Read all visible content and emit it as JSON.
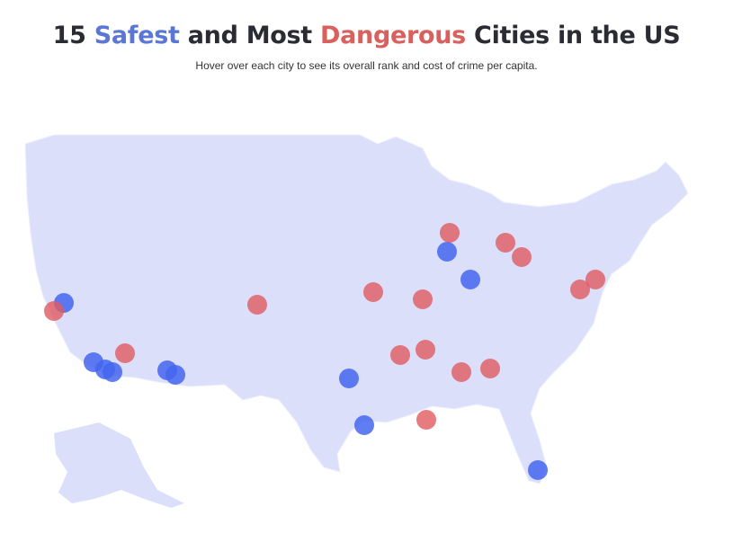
{
  "header": {
    "title": {
      "parts": [
        "15 ",
        "Safest",
        " and Most ",
        "Dangerous",
        " Cities in the US"
      ]
    },
    "subtitle": "Hover over each city to see its overall rank and cost of crime per capita."
  }
}
